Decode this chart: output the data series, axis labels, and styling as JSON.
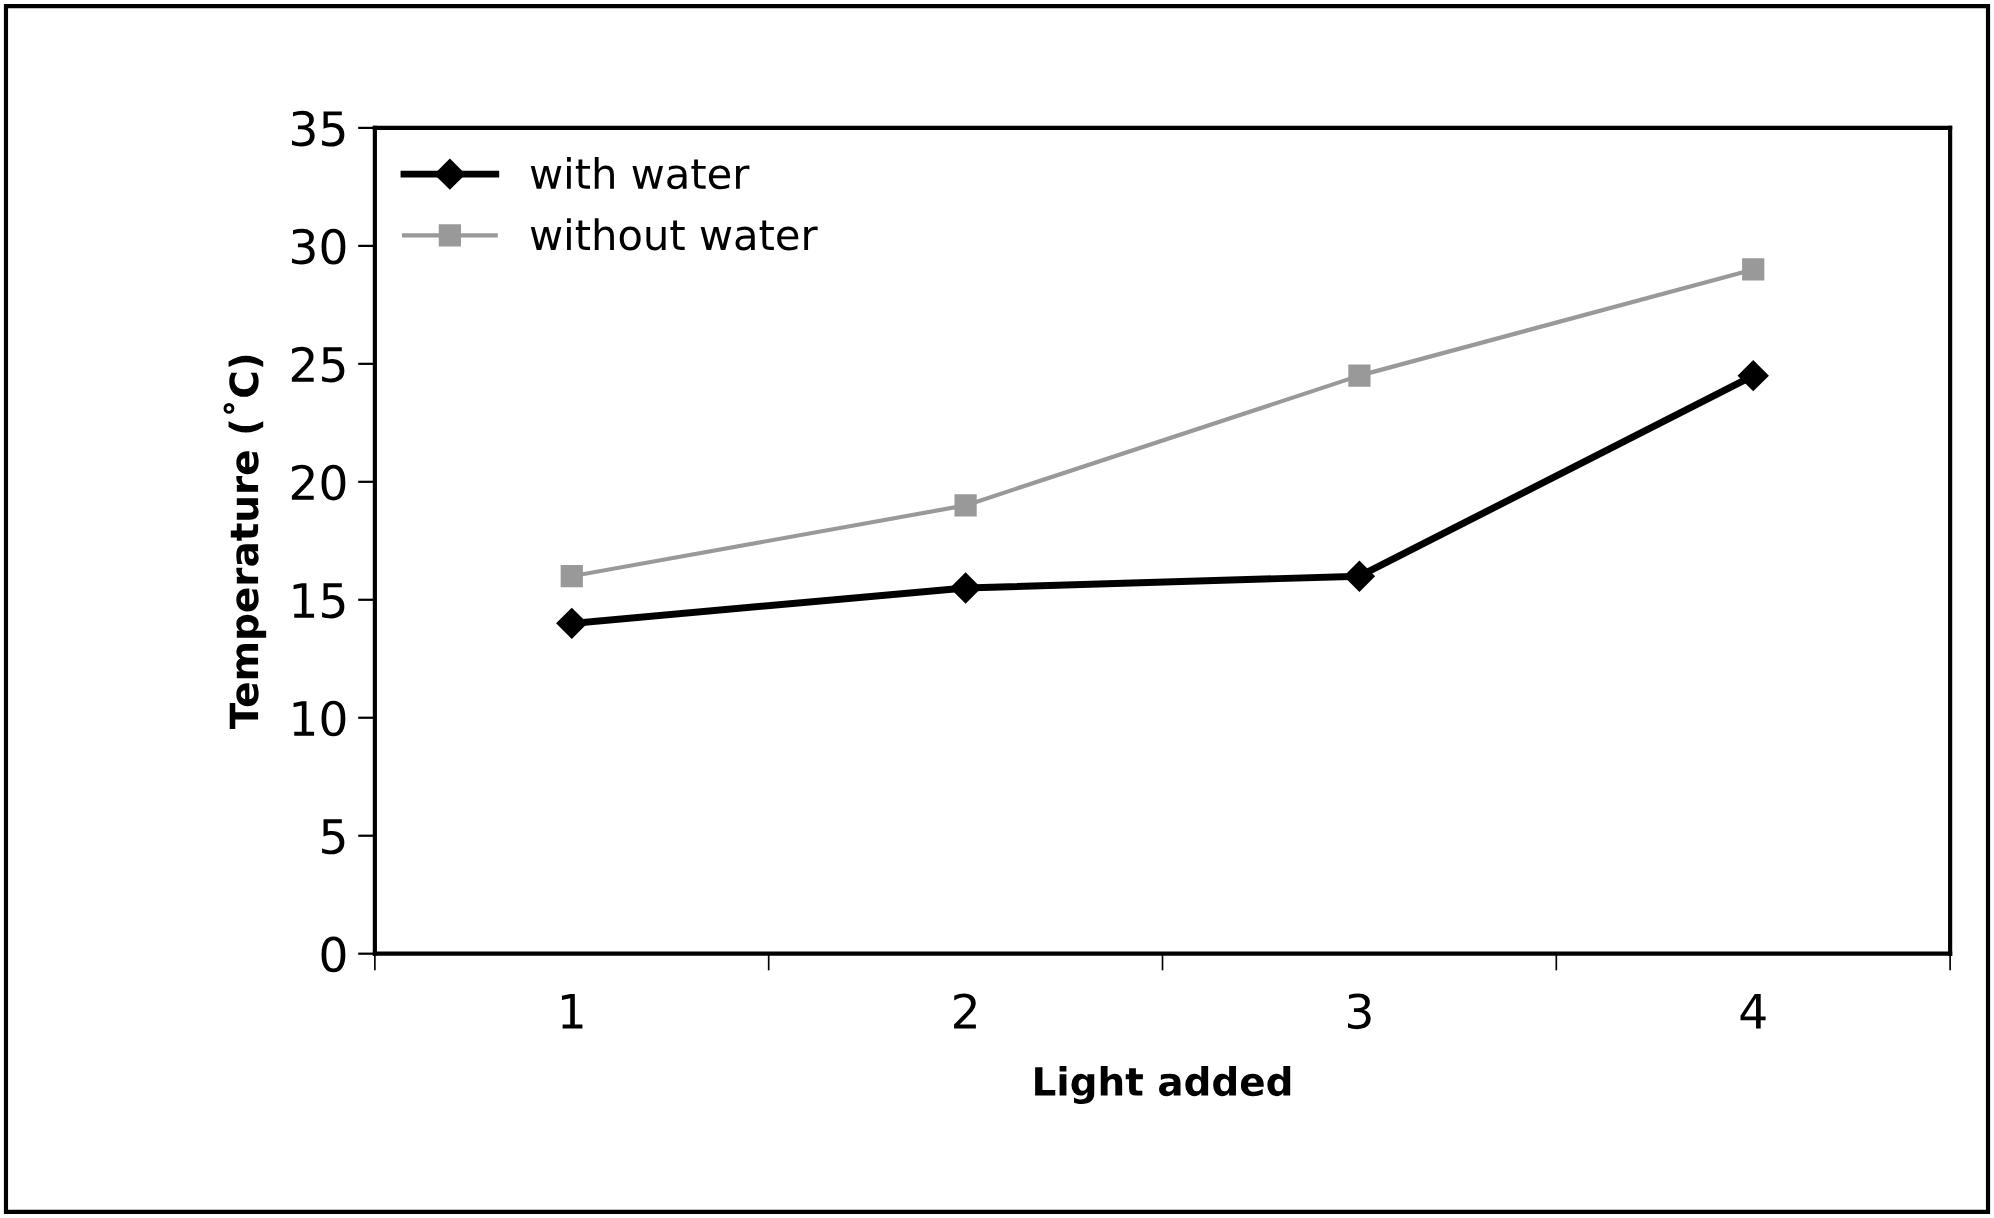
{
  "chart_data": {
    "type": "line",
    "xlabel": "Light added",
    "ylabel": "Temperature (˚C)",
    "categories": [
      "1",
      "2",
      "3",
      "4"
    ],
    "series": [
      {
        "name": "with water",
        "color": "#000000",
        "marker": "diamond",
        "values": [
          14,
          15.5,
          16,
          24.5
        ]
      },
      {
        "name": "without water",
        "color": "#999999",
        "marker": "square",
        "values": [
          16,
          19,
          24.5,
          29
        ]
      }
    ],
    "ylim": [
      0,
      35
    ],
    "yticks": [
      0,
      5,
      10,
      15,
      20,
      25,
      30,
      35
    ],
    "grid": false,
    "legend": "top left"
  }
}
